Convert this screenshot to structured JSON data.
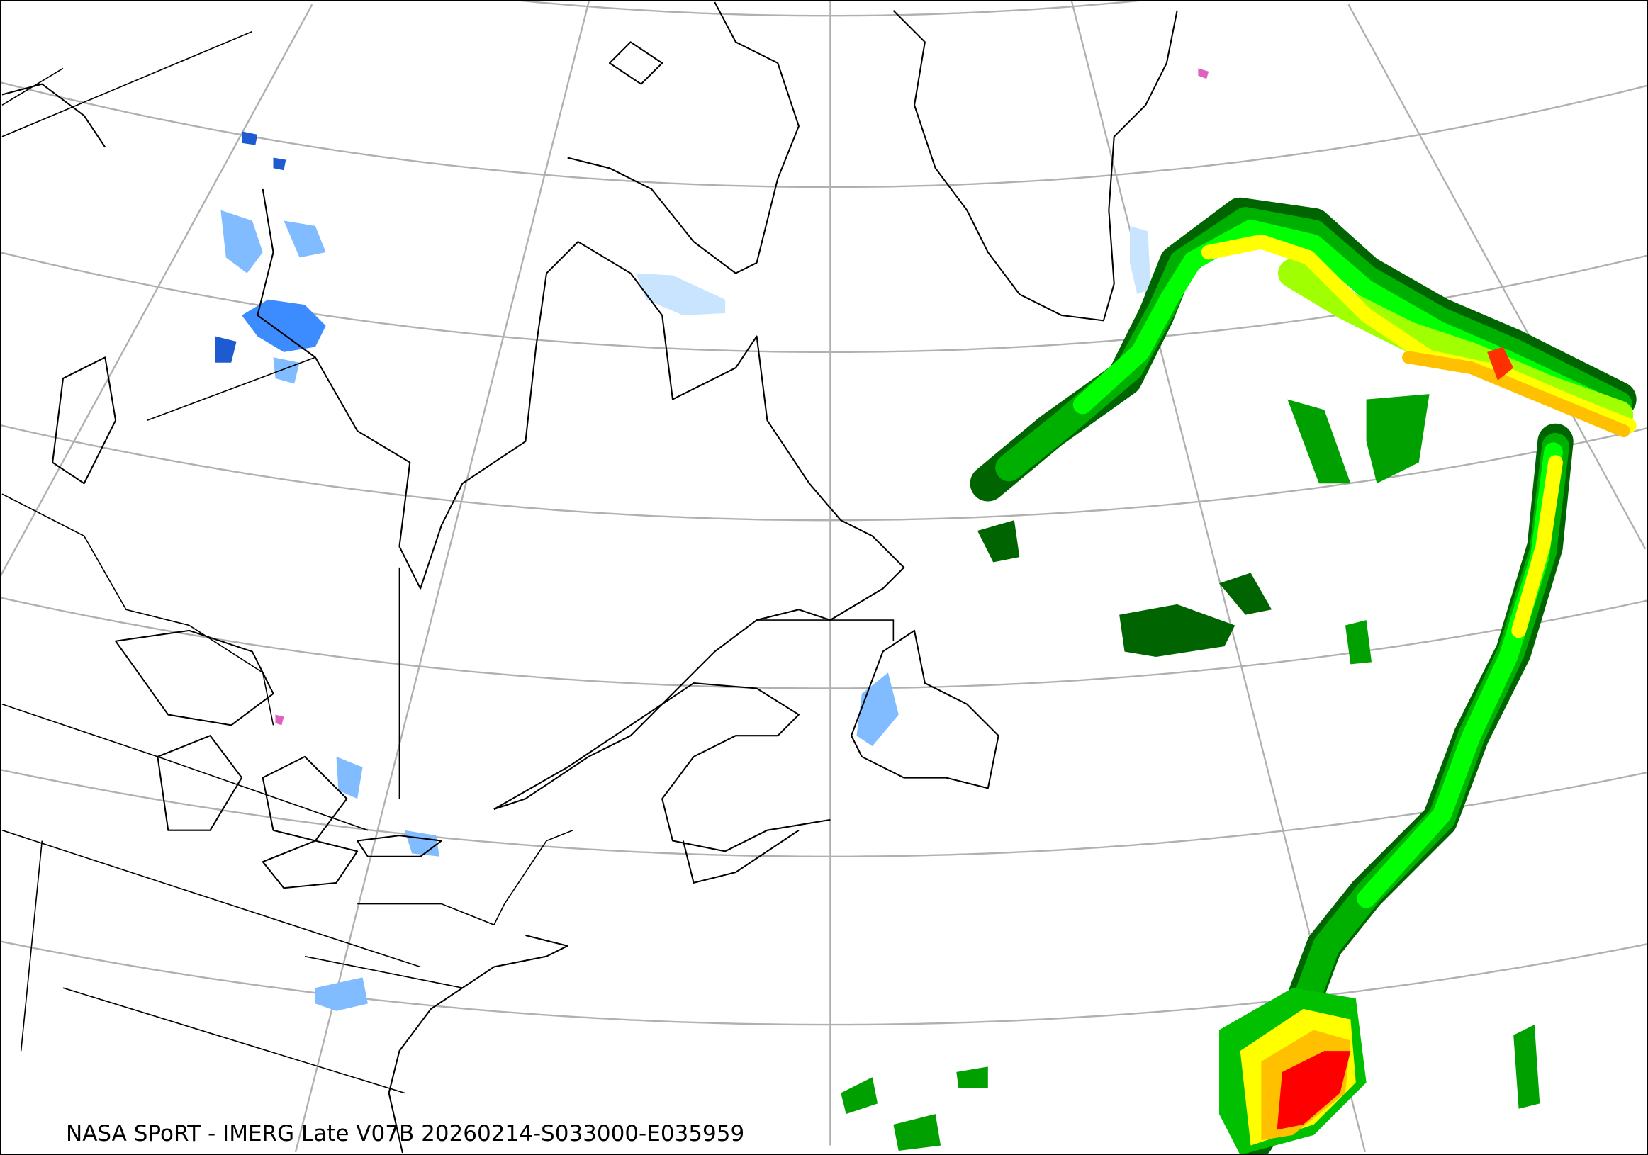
{
  "map": {
    "caption": "NASA SPoRT - IMERG Late V07B 20260214-S033000-E035959",
    "product": "IMERG Late V07B",
    "projection": "lambert-conformal",
    "region": "northeastern North America and northwest Atlantic",
    "graticule": true,
    "graticule_color": "#b0b0b0",
    "coastline_color": "#000000",
    "rain_colors": [
      "#006400",
      "#00a000",
      "#00e000",
      "#a0ff00",
      "#ffff00",
      "#ffc000",
      "#ff6000",
      "#ff0000"
    ],
    "snow_colors": [
      "#c8e4ff",
      "#80bcff",
      "#3c8cff",
      "#1e5ad0"
    ],
    "mixed_color": "#e060c0"
  }
}
